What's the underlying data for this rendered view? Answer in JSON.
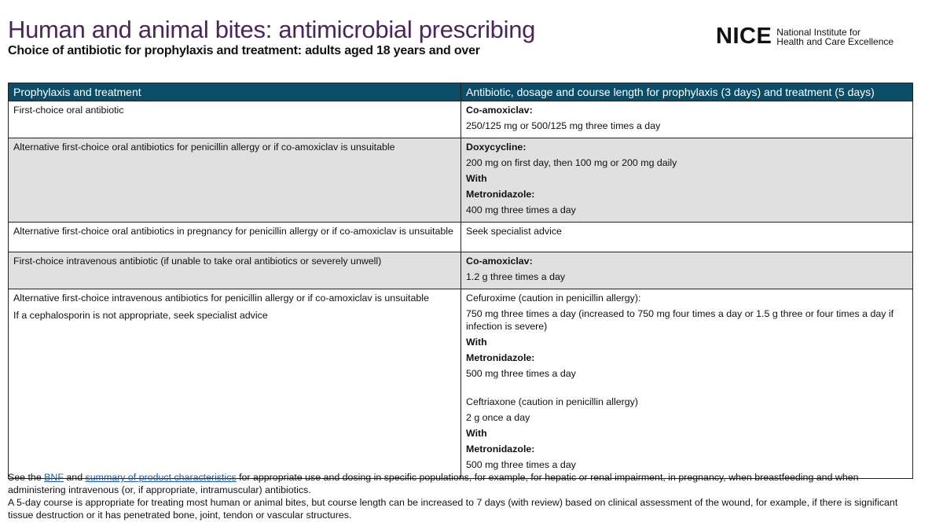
{
  "header": {
    "title": "Human and animal bites: antimicrobial prescribing",
    "subtitle": "Choice of antibiotic for prophylaxis and treatment: adults aged 18 years and over",
    "logo": {
      "mark": "NICE",
      "line1": "National Institute for",
      "line2": "Health and Care Excellence"
    }
  },
  "table": {
    "headers": [
      "Prophylaxis and treatment",
      "Antibiotic, dosage and course length for prophylaxis (3 days) and treatment (5 days)"
    ],
    "rows": [
      {
        "left": [
          "First-choice oral antibiotic"
        ],
        "right": [
          {
            "t": "Co-amoxiclav:",
            "b": true
          },
          {
            "t": "250/125 mg or 500/125 mg three times a day"
          }
        ]
      },
      {
        "left": [
          "Alternative first-choice oral antibiotics for penicillin allergy or if co-amoxiclav is unsuitable"
        ],
        "right": [
          {
            "t": "Doxycycline:",
            "b": true
          },
          {
            "t": "200 mg on first day, then 100 mg or 200 mg daily"
          },
          {
            "t": "With",
            "b": true
          },
          {
            "t": "Metronidazole:",
            "b": true
          },
          {
            "t": "400 mg three times a day"
          }
        ]
      },
      {
        "left": [
          "Alternative first-choice oral antibiotics in pregnancy for penicillin allergy or if co-amoxiclav is unsuitable"
        ],
        "right": [
          {
            "t": "Seek specialist advice"
          }
        ]
      },
      {
        "left": [
          "First-choice intravenous antibiotic (if unable to take oral antibiotics or severely unwell)"
        ],
        "right": [
          {
            "t": "Co-amoxiclav:",
            "b": true
          },
          {
            "t": "1.2 g three times a day"
          }
        ]
      },
      {
        "left": [
          "Alternative first-choice intravenous antibiotics for penicillin allergy or if co-amoxiclav is unsuitable",
          "If a cephalosporin is not appropriate, seek specialist advice"
        ],
        "right": [
          {
            "t": "Cefuroxime (caution in penicillin allergy):"
          },
          {
            "t": "750 mg three times a day (increased to 750 mg four times a day or 1.5 g three or four times a day if infection is severe)"
          },
          {
            "t": "With",
            "b": true
          },
          {
            "t": "Metronidazole:",
            "b": true
          },
          {
            "t": "500 mg three times a day"
          },
          {
            "t": "Ceftriaxone (caution in penicillin allergy)",
            "sp": true
          },
          {
            "t": "2 g once a day"
          },
          {
            "t": "With",
            "b": true
          },
          {
            "t": "Metronidazole:",
            "b": true
          },
          {
            "t": "500 mg three times a day"
          }
        ]
      }
    ]
  },
  "notes": {
    "n1_a": "See the ",
    "n1_link1": "BNF",
    "n1_b": " and ",
    "n1_link2": "summary of product characteristics",
    "n1_c": " for appropriate use and dosing in specific populations, for example, for hepatic or renal impairment, in pregnancy, when breastfeeding and when administering intravenous (or, if appropriate, intramuscular) antibiotics.",
    "n2": "A 5-day course is appropriate for treating most human or animal bites, but course length can be increased to 7 days (with review) based on clinical assessment of the wound, for example, if there is significant tissue destruction or it has penetrated bone, joint, tendon or vascular structures."
  }
}
